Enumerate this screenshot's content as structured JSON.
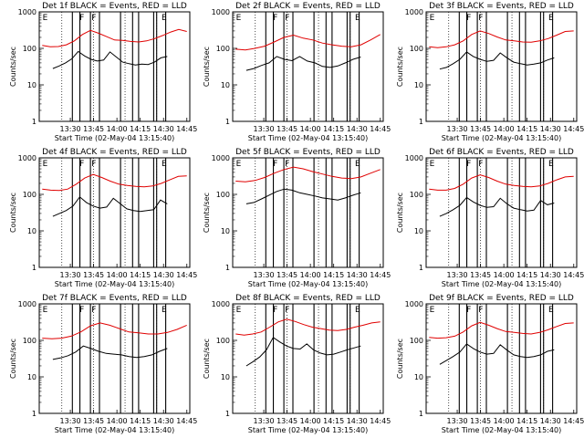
{
  "chart_data": [
    {
      "type": "line",
      "title": "Det 1f BLACK = Events, RED = LLD",
      "xlabel": "Start Time (02-May-04 13:15:40)",
      "ylabel": "Counts/sec",
      "x_ticks": [
        "13:30",
        "13:45",
        "14:00",
        "14:15",
        "14:30",
        "14:45"
      ],
      "y_ticks": [
        "1",
        "10",
        "100",
        "1000"
      ],
      "y_scale": "log",
      "ylim": [
        1,
        1000
      ],
      "flags": [
        "E",
        "F",
        "F",
        "E"
      ],
      "series": [
        {
          "color": "#000000",
          "values": [
            28,
            33,
            40,
            52,
            82,
            62,
            50,
            45,
            48,
            80,
            58,
            42,
            38,
            35,
            37,
            36,
            42,
            55,
            60
          ]
        },
        {
          "color": "#e00000",
          "values": [
            120,
            110,
            112,
            125,
            160,
            240,
            310,
            260,
            210,
            170,
            165,
            155,
            150,
            160,
            185,
            225,
            280,
            330,
            290
          ]
        }
      ]
    },
    {
      "type": "line",
      "title": "Det 2f BLACK = Events, RED = LLD",
      "xlabel": "Start Time (02-May-04 13:15:40)",
      "ylabel": "Counts/sec",
      "x_ticks": [
        "13:30",
        "13:45",
        "14:00",
        "14:15",
        "14:30",
        "14:45"
      ],
      "y_ticks": [
        "1",
        "10",
        "100",
        "1000"
      ],
      "y_scale": "log",
      "ylim": [
        1,
        1000
      ],
      "flags": [
        "E",
        "F",
        "F",
        "E"
      ],
      "series": [
        {
          "color": "#000000",
          "values": [
            25,
            28,
            34,
            40,
            60,
            50,
            46,
            60,
            45,
            40,
            32,
            30,
            33,
            40,
            50,
            58
          ]
        },
        {
          "color": "#e00000",
          "values": [
            95,
            90,
            100,
            115,
            150,
            200,
            230,
            190,
            170,
            140,
            125,
            115,
            110,
            125,
            170,
            240
          ]
        }
      ]
    },
    {
      "type": "line",
      "title": "Det 3f BLACK = Events, RED = LLD",
      "xlabel": "Start Time (02-May-04 13:15:40)",
      "ylabel": "Counts/sec",
      "x_ticks": [
        "13:30",
        "13:45",
        "14:00",
        "14:15",
        "14:30",
        "14:45"
      ],
      "y_ticks": [
        "1",
        "10",
        "100",
        "1000"
      ],
      "y_scale": "log",
      "ylim": [
        1,
        1000
      ],
      "flags": [
        "E",
        "F",
        "F",
        "E"
      ],
      "series": [
        {
          "color": "#000000",
          "values": [
            27,
            30,
            38,
            50,
            80,
            60,
            50,
            44,
            47,
            75,
            55,
            42,
            38,
            35,
            37,
            40,
            48,
            55
          ]
        },
        {
          "color": "#e00000",
          "values": [
            110,
            105,
            110,
            125,
            160,
            240,
            300,
            255,
            205,
            170,
            160,
            150,
            148,
            160,
            185,
            230,
            290,
            300
          ]
        }
      ]
    },
    {
      "type": "line",
      "title": "Det 4f BLACK = Events, RED = LLD",
      "xlabel": "Start Time (02-May-04 13:15:40)",
      "ylabel": "Counts/sec",
      "x_ticks": [
        "13:30",
        "13:45",
        "14:00",
        "14:15",
        "14:30",
        "14:45"
      ],
      "y_ticks": [
        "1",
        "10",
        "100",
        "1000"
      ],
      "y_scale": "log",
      "ylim": [
        1,
        1000
      ],
      "flags": [
        "E",
        "F",
        "F",
        "E"
      ],
      "series": [
        {
          "color": "#000000",
          "values": [
            25,
            30,
            36,
            48,
            85,
            60,
            48,
            42,
            45,
            78,
            56,
            40,
            36,
            34,
            36,
            38,
            70,
            55
          ]
        },
        {
          "color": "#e00000",
          "values": [
            140,
            130,
            128,
            140,
            190,
            280,
            350,
            290,
            230,
            190,
            175,
            165,
            160,
            170,
            200,
            250,
            310,
            320
          ]
        }
      ]
    },
    {
      "type": "line",
      "title": "Det 5f BLACK = Events, RED = LLD",
      "xlabel": "Start Time (02-May-04 13:15:40)",
      "ylabel": "Counts/sec",
      "x_ticks": [
        "13:30",
        "13:45",
        "14:00",
        "14:15",
        "14:30",
        "14:45"
      ],
      "y_ticks": [
        "1",
        "10",
        "100",
        "1000"
      ],
      "y_scale": "log",
      "ylim": [
        1,
        1000
      ],
      "flags": [
        "E",
        "F",
        "F",
        "E"
      ],
      "series": [
        {
          "color": "#000000",
          "values": [
            55,
            60,
            75,
            95,
            120,
            140,
            130,
            110,
            100,
            90,
            80,
            75,
            70,
            80,
            95,
            110
          ]
        },
        {
          "color": "#e00000",
          "values": [
            230,
            220,
            240,
            290,
            380,
            480,
            560,
            500,
            420,
            360,
            310,
            280,
            270,
            300,
            380,
            480
          ]
        }
      ]
    },
    {
      "type": "line",
      "title": "Det 6f BLACK = Events, RED = LLD",
      "xlabel": "Start Time (02-May-04 13:15:40)",
      "ylabel": "Counts/sec",
      "x_ticks": [
        "13:30",
        "13:45",
        "14:00",
        "14:15",
        "14:30",
        "14:45"
      ],
      "y_ticks": [
        "1",
        "10",
        "100",
        "1000"
      ],
      "y_scale": "log",
      "ylim": [
        1,
        1000
      ],
      "flags": [
        "E",
        "F",
        "F",
        "E"
      ],
      "series": [
        {
          "color": "#000000",
          "values": [
            25,
            30,
            38,
            50,
            82,
            62,
            50,
            44,
            46,
            78,
            55,
            42,
            38,
            35,
            37,
            68,
            52,
            58
          ]
        },
        {
          "color": "#e00000",
          "values": [
            140,
            130,
            130,
            145,
            190,
            280,
            340,
            290,
            230,
            190,
            175,
            165,
            160,
            170,
            200,
            250,
            300,
            310
          ]
        }
      ]
    },
    {
      "type": "line",
      "title": "Det 7f BLACK = Events, RED = LLD",
      "xlabel": "Start Time (02-May-04 13:15:40)",
      "ylabel": "Counts/sec",
      "x_ticks": [
        "13:30",
        "13:45",
        "14:00",
        "14:15",
        "14:30",
        "14:45"
      ],
      "y_ticks": [
        "1",
        "10",
        "100",
        "1000"
      ],
      "y_scale": "log",
      "ylim": [
        1,
        1000
      ],
      "flags": [
        "E",
        "F",
        "F",
        "E"
      ],
      "series": [
        {
          "color": "#000000",
          "values": [
            30,
            33,
            38,
            48,
            70,
            60,
            50,
            44,
            42,
            40,
            36,
            34,
            36,
            40,
            50,
            60
          ]
        },
        {
          "color": "#e00000",
          "values": [
            115,
            110,
            115,
            130,
            170,
            250,
            300,
            260,
            210,
            170,
            160,
            150,
            150,
            165,
            200,
            260
          ]
        }
      ]
    },
    {
      "type": "line",
      "title": "Det 8f BLACK = Events, RED = LLD",
      "xlabel": "Start Time (02-May-04 13:15:40)",
      "ylabel": "Counts/sec",
      "x_ticks": [
        "13:30",
        "13:45",
        "14:00",
        "14:15",
        "14:30",
        "14:45"
      ],
      "y_ticks": [
        "1",
        "10",
        "100",
        "1000"
      ],
      "y_scale": "log",
      "ylim": [
        1,
        1000
      ],
      "flags": [
        "E",
        "F",
        "F",
        "E"
      ],
      "series": [
        {
          "color": "#000000",
          "values": [
            20,
            26,
            35,
            55,
            120,
            90,
            70,
            60,
            58,
            80,
            55,
            45,
            40,
            42,
            48,
            55,
            62,
            70
          ]
        },
        {
          "color": "#e00000",
          "values": [
            150,
            140,
            150,
            170,
            230,
            320,
            380,
            330,
            270,
            230,
            210,
            190,
            185,
            200,
            230,
            260,
            300,
            320
          ]
        }
      ]
    },
    {
      "type": "line",
      "title": "Det 9f BLACK = Events, RED = LLD",
      "xlabel": "Start Time (02-May-04 13:15:40)",
      "ylabel": "Counts/sec",
      "x_ticks": [
        "13:30",
        "13:45",
        "14:00",
        "14:15",
        "14:30",
        "14:45"
      ],
      "y_ticks": [
        "1",
        "10",
        "100",
        "1000"
      ],
      "y_scale": "log",
      "ylim": [
        1,
        1000
      ],
      "flags": [
        "E",
        "F",
        "F",
        "E"
      ],
      "series": [
        {
          "color": "#000000",
          "values": [
            22,
            28,
            36,
            48,
            80,
            60,
            48,
            42,
            44,
            76,
            54,
            40,
            36,
            34,
            36,
            40,
            50,
            55
          ]
        },
        {
          "color": "#e00000",
          "values": [
            120,
            115,
            118,
            130,
            170,
            250,
            310,
            260,
            210,
            175,
            165,
            155,
            150,
            165,
            195,
            240,
            290,
            300
          ]
        }
      ]
    }
  ]
}
